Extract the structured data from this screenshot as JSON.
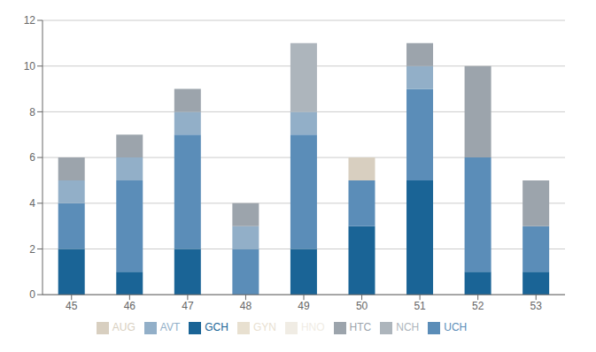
{
  "chart_data": {
    "type": "bar",
    "stacked": true,
    "categories": [
      "45",
      "46",
      "47",
      "48",
      "49",
      "50",
      "51",
      "52",
      "53"
    ],
    "series": [
      {
        "name": "GCH",
        "color": "#1a6496",
        "values": [
          2,
          1,
          2,
          0,
          2,
          3,
          5,
          1,
          1
        ]
      },
      {
        "name": "UCH",
        "color": "#5b8db8",
        "values": [
          2,
          4,
          5,
          2,
          5,
          2,
          4,
          5,
          2
        ]
      },
      {
        "name": "AVT",
        "color": "#92afc8",
        "values": [
          1,
          1,
          1,
          1,
          1,
          0,
          1,
          0,
          0
        ]
      },
      {
        "name": "HTC",
        "color": "#9ca4ac",
        "values": [
          1,
          1,
          1,
          1,
          0,
          0,
          1,
          4,
          2
        ]
      },
      {
        "name": "NCH",
        "color": "#adb5bc",
        "values": [
          0,
          0,
          0,
          0,
          3,
          0,
          0,
          0,
          0
        ]
      },
      {
        "name": "AUG",
        "color": "#d8cfc0",
        "values": [
          0,
          0,
          0,
          0,
          0,
          1,
          0,
          0,
          0
        ]
      },
      {
        "name": "GYN",
        "color": "#e8e0d0",
        "values": [
          0,
          0,
          0,
          0,
          0,
          0,
          0,
          0,
          0
        ]
      },
      {
        "name": "HNO",
        "color": "#f0ece4",
        "values": [
          0,
          0,
          0,
          0,
          0,
          0,
          0,
          0,
          0
        ]
      }
    ],
    "ylim": [
      0,
      12
    ],
    "yticks": [
      0,
      2,
      4,
      6,
      8,
      10,
      12
    ],
    "grid": true,
    "legend": "bottom"
  }
}
